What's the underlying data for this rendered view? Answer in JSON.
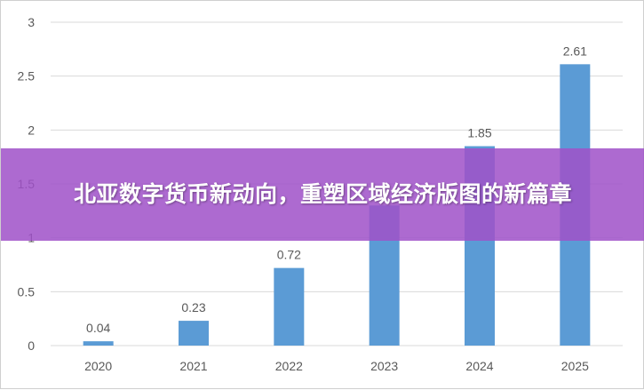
{
  "headline": "北亚数字货币新动向，重塑区域经济版图的新篇章",
  "chart_data": {
    "type": "bar",
    "categories": [
      "2020",
      "2021",
      "2022",
      "2023",
      "2024",
      "2025"
    ],
    "values": [
      0.04,
      0.23,
      0.72,
      1.3,
      1.85,
      2.61
    ],
    "data_labels": [
      "0.04",
      "0.23",
      "0.72",
      "",
      "1.85",
      "2.61"
    ],
    "y_ticks": [
      "0",
      "0.5",
      "1",
      "1.5",
      "2",
      "2.5",
      "3"
    ],
    "ylim": [
      0,
      3
    ],
    "grid": true,
    "bar_color": "#5b9bd5",
    "grid_color": "#d9d9d9",
    "label_color": "#595959"
  }
}
